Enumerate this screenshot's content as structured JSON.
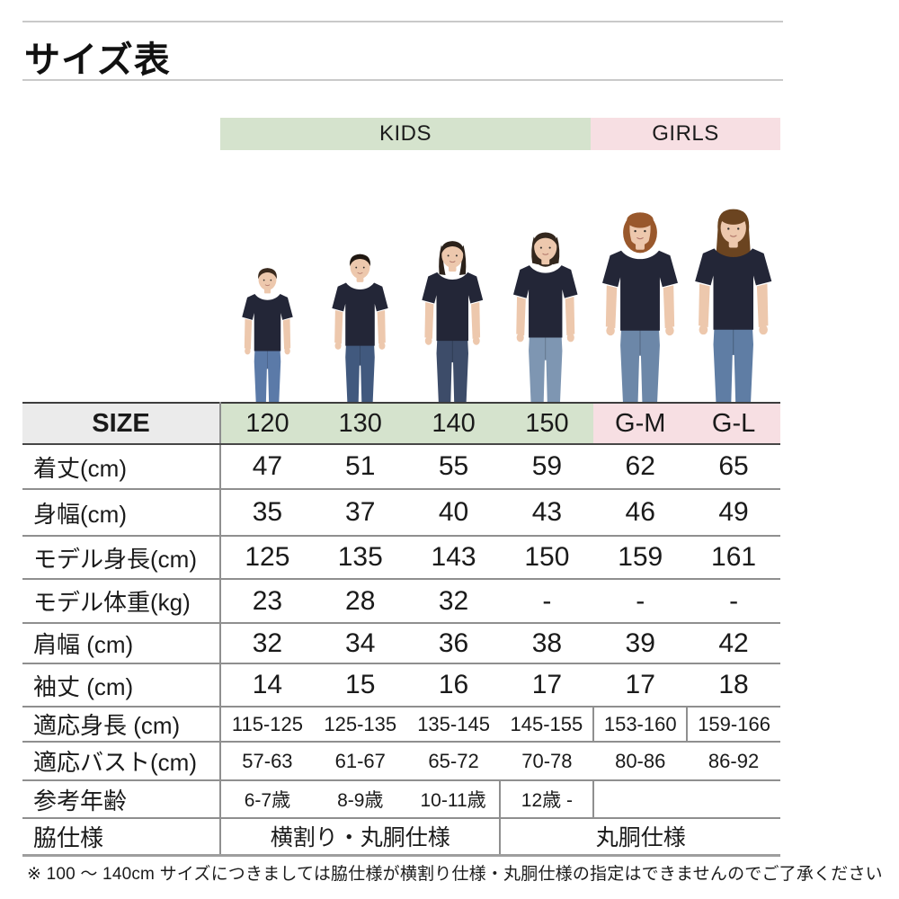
{
  "page": {
    "title": "サイズ表",
    "footnote": "※ 100 ～ 140cm サイズにつきましては脇仕様が横割り仕様・丸胴仕様の指定はできませんのでご了承ください"
  },
  "colors": {
    "kids_band_bg": "#d5e3cd",
    "girls_band_bg": "#f7dfe3",
    "size_header_bg": "#ebebeb",
    "tshirt_navy": "#232637"
  },
  "models": [
    "120",
    "130",
    "140",
    "150",
    "G-M",
    "G-L"
  ],
  "chart_data": {
    "type": "table",
    "title": "サイズ表",
    "column_groups": [
      {
        "label": "KIDS",
        "span": 4
      },
      {
        "label": "GIRLS",
        "span": 2
      }
    ],
    "size_label": "SIZE",
    "columns": [
      "120",
      "130",
      "140",
      "150",
      "G-M",
      "G-L"
    ],
    "rows": [
      {
        "label": "着丈(cm)",
        "values": [
          "47",
          "51",
          "55",
          "59",
          "62",
          "65"
        ]
      },
      {
        "label": "身幅(cm)",
        "values": [
          "35",
          "37",
          "40",
          "43",
          "46",
          "49"
        ]
      },
      {
        "label": "モデル身長(cm)",
        "values": [
          "125",
          "135",
          "143",
          "150",
          "159",
          "161"
        ]
      },
      {
        "label": "モデル体重(kg)",
        "values": [
          "23",
          "28",
          "32",
          "-",
          "-",
          "-"
        ]
      },
      {
        "label": "肩幅 (cm)",
        "values": [
          "32",
          "34",
          "36",
          "38",
          "39",
          "42"
        ]
      },
      {
        "label": "袖丈 (cm)",
        "values": [
          "14",
          "15",
          "16",
          "17",
          "17",
          "18"
        ]
      },
      {
        "label": "適応身長 (cm)",
        "values": [
          "115-125",
          "125-135",
          "135-145",
          "145-155",
          "153-160",
          "159-166"
        ]
      },
      {
        "label": "適応バスト(cm)",
        "values": [
          "57-63",
          "61-67",
          "65-72",
          "70-78",
          "80-86",
          "86-92"
        ]
      },
      {
        "label": "参考年齢",
        "values": [
          "6-7歳",
          "8-9歳",
          "10-11歳",
          "12歳 -",
          ""
        ]
      },
      {
        "label": "脇仕様",
        "values": [
          "横割り・丸胴仕様",
          "丸胴仕様"
        ]
      }
    ]
  }
}
